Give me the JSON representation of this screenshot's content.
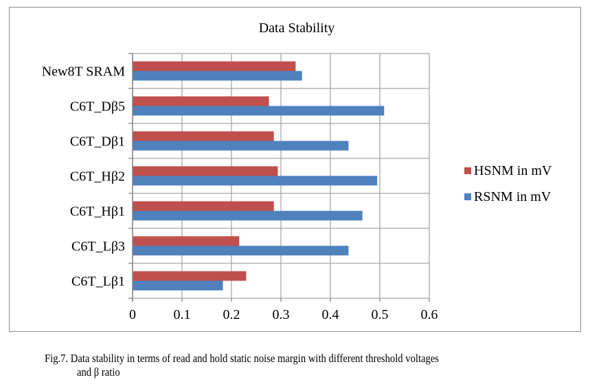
{
  "chart_data": {
    "type": "bar",
    "orientation": "horizontal",
    "title": "Data Stability",
    "xlabel": "",
    "ylabel": "",
    "xlim": [
      0,
      0.6
    ],
    "xticks": [
      "0",
      "0.1",
      "0.2",
      "0.3",
      "0.4",
      "0.5",
      "0.6"
    ],
    "xtick_values": [
      0,
      0.1,
      0.2,
      0.3,
      0.4,
      0.5,
      0.6
    ],
    "grid": true,
    "legend_position": "right",
    "categories": [
      "C6T_Lβ1",
      "C6T_Lβ3",
      "C6T_Hβ1",
      "C6T_Hβ2",
      "C6T_Dβ1",
      "C6T_Dβ5",
      "New8T SRAM"
    ],
    "series": [
      {
        "name": "HSNM in mV",
        "color": "#c0504d",
        "values": [
          0.229,
          0.215,
          0.285,
          0.293,
          0.285,
          0.275,
          0.329
        ]
      },
      {
        "name": "RSNM in mV",
        "color": "#4f81bd",
        "values": [
          0.182,
          0.436,
          0.464,
          0.494,
          0.436,
          0.508,
          0.342
        ]
      }
    ]
  },
  "caption": {
    "line1": "Fig.7. Data stability in terms of read and hold static noise margin with different threshold voltages",
    "line2": "and β ratio"
  }
}
